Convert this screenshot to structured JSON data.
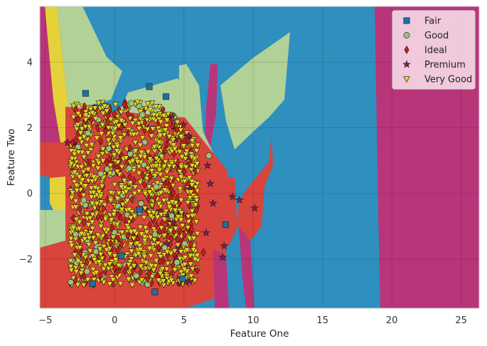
{
  "chart_data": {
    "type": "scatter",
    "title": "",
    "xlabel": "Feature One",
    "ylabel": "Feature Two",
    "xlim": [
      -5.4,
      26.3
    ],
    "ylim": [
      -3.5,
      5.7
    ],
    "x_ticks": [
      -5,
      0,
      5,
      10,
      15,
      20,
      25
    ],
    "y_ticks": [
      -2,
      0,
      2,
      4
    ],
    "grid": true,
    "legend_position": "top-right",
    "series": [
      {
        "name": "Fair",
        "marker": "square",
        "color": "#1f6f9f",
        "points": [
          [
            -2.1,
            3.05
          ],
          [
            2.5,
            3.25
          ],
          [
            3.7,
            2.95
          ],
          [
            8.0,
            -0.95
          ],
          [
            4.9,
            -2.6
          ],
          [
            -1.6,
            -2.75
          ],
          [
            0.5,
            -1.9
          ],
          [
            2.9,
            -3.0
          ],
          [
            1.8,
            -0.5
          ]
        ]
      },
      {
        "name": "Good",
        "marker": "circle",
        "color": "#9cc07c",
        "points": [
          [
            1.2,
            2.75
          ],
          [
            2.0,
            2.4
          ],
          [
            6.8,
            1.15
          ],
          [
            4.5,
            -2.1
          ],
          [
            -1.0,
            0.6
          ],
          [
            3.0,
            0.2
          ]
        ]
      },
      {
        "name": "Ideal",
        "marker": "diamond",
        "color": "#d11a1a",
        "points": [
          [
            -1.0,
            -2.5
          ],
          [
            4.5,
            1.95
          ],
          [
            6.4,
            -1.8
          ],
          [
            5.5,
            -1.55
          ],
          [
            2.4,
            -2.6
          ],
          [
            0.2,
            -2.4
          ],
          [
            -2.0,
            -2.1
          ],
          [
            1.4,
            0.4
          ],
          [
            5.9,
            -0.5
          ]
        ]
      },
      {
        "name": "Premium",
        "marker": "star",
        "color": "#8e1b53",
        "points": [
          [
            8.5,
            -0.1
          ],
          [
            9.0,
            -0.2
          ],
          [
            10.1,
            -0.45
          ],
          [
            7.9,
            -1.6
          ],
          [
            7.8,
            -1.95
          ],
          [
            5.3,
            1.75
          ],
          [
            6.7,
            0.85
          ],
          [
            6.9,
            0.3
          ],
          [
            7.1,
            -0.3
          ],
          [
            -3.4,
            1.55
          ],
          [
            6.6,
            -1.2
          ]
        ]
      },
      {
        "name": "Very Good",
        "marker": "triangle-down",
        "color": "#e8d421",
        "points": [
          [
            0.5,
            0.2
          ],
          [
            1.5,
            1.3
          ],
          [
            -1.5,
            0.5
          ]
        ]
      }
    ],
    "decision_regions": [
      {
        "class": "Fair",
        "color": "#2f8fbe"
      },
      {
        "class": "Good",
        "color": "#b1d196"
      },
      {
        "class": "Ideal",
        "color": "#d9443c"
      },
      {
        "class": "Premium",
        "color": "#b8357a"
      },
      {
        "class": "Very Good",
        "color": "#e5d23a"
      }
    ]
  }
}
